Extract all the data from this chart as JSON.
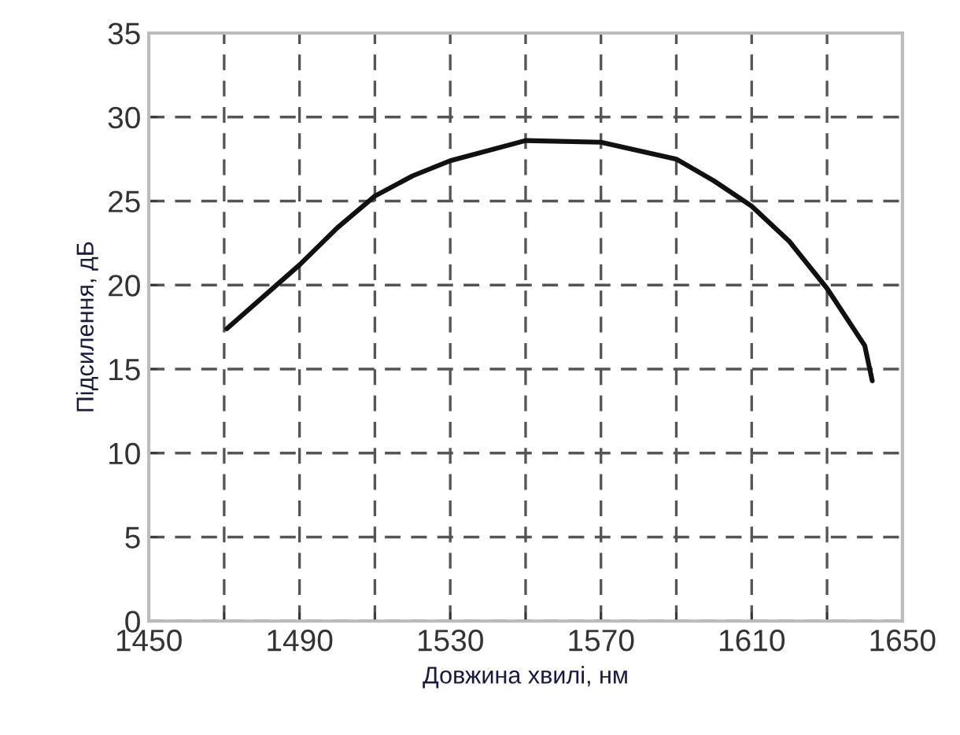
{
  "chart_data": {
    "type": "line",
    "xlabel": "Довжина хвилі, нм",
    "ylabel": "Підсилення, дБ",
    "series": [
      {
        "color": "#111111",
        "x": [
          1470.7,
          1490,
          1500,
          1510,
          1520,
          1530,
          1550,
          1570,
          1590,
          1600,
          1610,
          1620,
          1630,
          1640,
          1642
        ],
        "values": [
          17.4,
          21.2,
          23.4,
          25.3,
          26.5,
          27.4,
          28.6,
          28.5,
          27.5,
          26.2,
          24.7,
          22.6,
          19.8,
          16.4,
          14.3
        ]
      }
    ],
    "xlim": [
      1450,
      1650
    ],
    "xticks": [
      1450,
      {
        "value": 1470,
        "label": null
      },
      1490,
      {
        "value": 1510,
        "label": null
      },
      1530,
      {
        "value": 1550,
        "label": null
      },
      1570,
      {
        "value": 1590,
        "label": null
      },
      1610,
      {
        "value": 1630,
        "label": null
      },
      1650
    ],
    "ylim": [
      0,
      35
    ],
    "yticks": [
      0,
      5,
      10,
      15,
      20,
      25,
      30,
      35
    ],
    "grid": true,
    "marker": "none",
    "line_style": "solid"
  }
}
